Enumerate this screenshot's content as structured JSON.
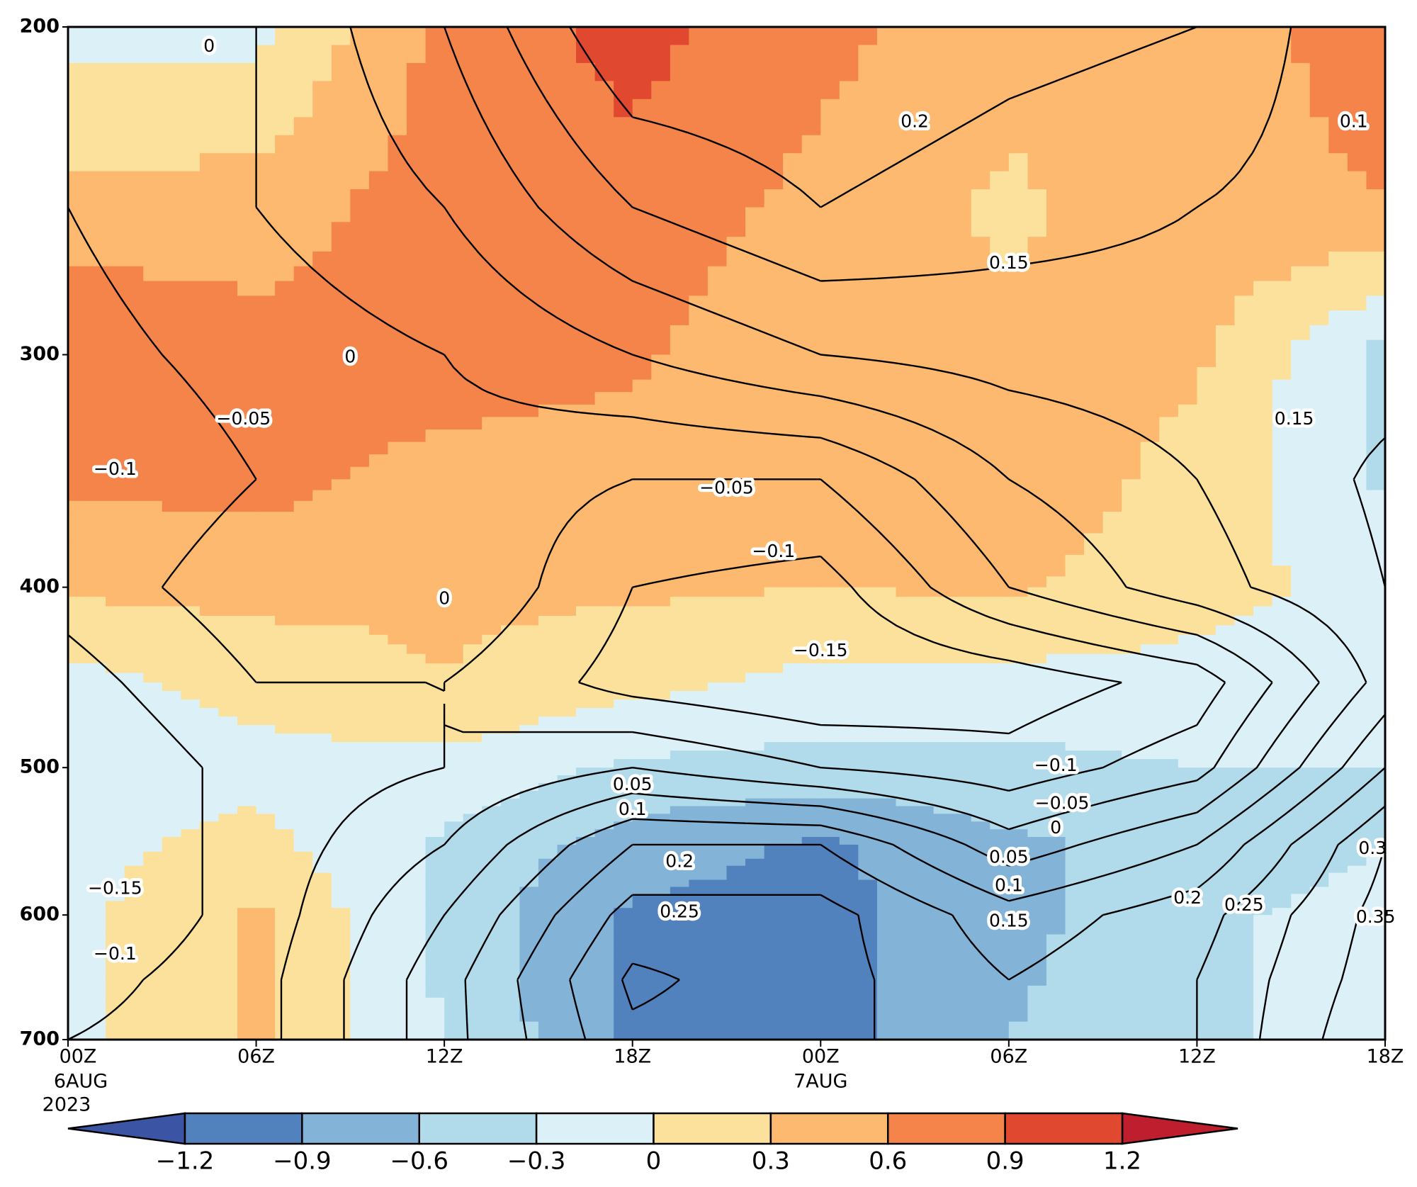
{
  "chart_data": {
    "type": "contour",
    "x": [
      0,
      6,
      12,
      18,
      24,
      30,
      36,
      42
    ],
    "y": [
      200,
      250,
      300,
      350,
      400,
      450,
      500,
      550,
      600,
      650,
      700
    ],
    "xlim": [
      0,
      42
    ],
    "ylim": [
      200,
      700
    ],
    "y_inverted": true,
    "log_scale": true,
    "xticks": [
      {
        "value": 0,
        "label": "00Z"
      },
      {
        "value": 6,
        "label": "06Z"
      },
      {
        "value": 12,
        "label": "12Z"
      },
      {
        "value": 18,
        "label": "18Z"
      },
      {
        "value": 24,
        "label": "00Z"
      },
      {
        "value": 30,
        "label": "06Z"
      },
      {
        "value": 36,
        "label": "12Z"
      },
      {
        "value": 42,
        "label": "18Z"
      }
    ],
    "x_date_labels": [
      {
        "value": 0,
        "label": "6AUG"
      },
      {
        "value": 24,
        "label": "7AUG"
      }
    ],
    "x_year_label": {
      "value": 0,
      "label": "2023"
    },
    "yticks": [
      200,
      300,
      400,
      500,
      600,
      700
    ],
    "shading": {
      "levels": [
        -1.2,
        -0.9,
        -0.6,
        -0.3,
        0,
        0.3,
        0.6,
        0.9,
        1.2
      ],
      "colors": [
        "#3b54a4",
        "#5282be",
        "#83b4d8",
        "#b1dbea",
        "#dcf1f7",
        "#fce19d",
        "#fdb96f",
        "#f5844b",
        "#e0482f",
        "#be1e2d"
      ],
      "extend": "both",
      "values": [
        [
          -0.1,
          -0.1,
          0.7,
          1.0,
          0.7,
          0.4,
          0.5,
          0.7
        ],
        [
          0.4,
          0.45,
          0.75,
          0.8,
          0.5,
          0.25,
          0.5,
          0.6
        ],
        [
          0.9,
          0.7,
          0.75,
          0.65,
          0.35,
          0.35,
          0.35,
          -0.4
        ],
        [
          0.65,
          0.7,
          0.5,
          0.45,
          0.45,
          0.5,
          0.2,
          -0.35
        ],
        [
          0.35,
          0.4,
          0.35,
          0.35,
          0.3,
          0.35,
          0.1,
          -0.1
        ],
        [
          -0.1,
          0.1,
          0.3,
          0.1,
          -0.1,
          -0.1,
          -0.1,
          -0.2
        ],
        [
          -0.1,
          -0.1,
          -0.1,
          -0.35,
          -0.4,
          -0.4,
          -0.3,
          -0.3
        ],
        [
          -0.1,
          0.1,
          -0.35,
          -0.75,
          -0.95,
          -0.65,
          -0.5,
          -0.3
        ],
        [
          -0.1,
          0.35,
          -0.4,
          -0.95,
          -1.0,
          -0.7,
          -0.35,
          -0.2
        ],
        [
          -0.1,
          0.35,
          -0.35,
          -0.95,
          -1.0,
          -0.65,
          -0.35,
          -0.2
        ],
        [
          -0.1,
          0.35,
          -0.3,
          -0.95,
          -1.0,
          -0.6,
          -0.35,
          -0.2
        ]
      ]
    },
    "contours": {
      "levels": [
        -0.15,
        -0.1,
        -0.05,
        0,
        0.05,
        0.1,
        0.15,
        0.2,
        0.25,
        0.3,
        0.35
      ],
      "color": "#000000",
      "values": [
        [
          -0.05,
          0.0,
          0.1,
          0.25,
          0.25,
          0.22,
          0.2,
          0.1
        ],
        [
          -0.05,
          0.0,
          0.05,
          0.15,
          0.2,
          0.17,
          0.15,
          0.12
        ],
        [
          -0.07,
          -0.03,
          0.0,
          0.05,
          0.1,
          0.12,
          0.13,
          0.13
        ],
        [
          -0.1,
          -0.05,
          -0.02,
          -0.05,
          -0.05,
          0.05,
          0.1,
          0.16
        ],
        [
          -0.08,
          -0.02,
          0.0,
          -0.1,
          -0.12,
          0.0,
          0.08,
          0.15
        ],
        [
          -0.12,
          -0.05,
          -0.05,
          -0.12,
          -0.15,
          -0.13,
          -0.08,
          0.12
        ],
        [
          -0.15,
          -0.08,
          -0.05,
          0.0,
          -0.05,
          -0.08,
          -0.02,
          0.2
        ],
        [
          -0.15,
          -0.08,
          0.0,
          0.15,
          0.15,
          0.02,
          0.1,
          0.3
        ],
        [
          -0.15,
          -0.08,
          0.05,
          0.22,
          0.22,
          0.12,
          0.18,
          0.32
        ],
        [
          -0.12,
          -0.07,
          0.08,
          0.26,
          0.22,
          0.15,
          0.2,
          0.33
        ],
        [
          -0.1,
          -0.07,
          0.08,
          0.24,
          0.22,
          0.15,
          0.2,
          0.35
        ]
      ]
    },
    "contour_labels": [
      {
        "label": "0",
        "x": 4.5,
        "y": 205
      },
      {
        "label": "0.2",
        "x": 27.0,
        "y": 225
      },
      {
        "label": "0.1",
        "x": 41.0,
        "y": 225
      },
      {
        "label": "0.15",
        "x": 30.0,
        "y": 268
      },
      {
        "label": "0",
        "x": 9.0,
        "y": 301
      },
      {
        "label": "−0.05",
        "x": 5.6,
        "y": 325
      },
      {
        "label": "−0.1",
        "x": 1.5,
        "y": 346
      },
      {
        "label": "0.15",
        "x": 39.1,
        "y": 325
      },
      {
        "label": "−0.05",
        "x": 21.0,
        "y": 354
      },
      {
        "label": "−0.1",
        "x": 22.5,
        "y": 383
      },
      {
        "label": "0",
        "x": 12.0,
        "y": 406
      },
      {
        "label": "−0.15",
        "x": 24.0,
        "y": 433
      },
      {
        "label": "−0.1",
        "x": 31.5,
        "y": 499
      },
      {
        "label": "−0.05",
        "x": 31.7,
        "y": 523
      },
      {
        "label": "0",
        "x": 31.5,
        "y": 539
      },
      {
        "label": "0.05",
        "x": 30.0,
        "y": 559
      },
      {
        "label": "0.1",
        "x": 30.0,
        "y": 579
      },
      {
        "label": "0.15",
        "x": 30.0,
        "y": 605
      },
      {
        "label": "0.05",
        "x": 18.0,
        "y": 511
      },
      {
        "label": "0.1",
        "x": 18.0,
        "y": 527
      },
      {
        "label": "0.2",
        "x": 19.5,
        "y": 562
      },
      {
        "label": "0.25",
        "x": 19.5,
        "y": 598
      },
      {
        "label": "−0.15",
        "x": 1.5,
        "y": 581
      },
      {
        "label": "−0.1",
        "x": 1.5,
        "y": 630
      },
      {
        "label": "0.2",
        "x": 35.7,
        "y": 588
      },
      {
        "label": "0.25",
        "x": 37.5,
        "y": 593
      },
      {
        "label": "0.3",
        "x": 41.6,
        "y": 553
      },
      {
        "label": "0.35",
        "x": 41.7,
        "y": 602
      }
    ],
    "colorbar_ticks": [
      {
        "value": -1.2,
        "label": "−1.2"
      },
      {
        "value": -0.9,
        "label": "−0.9"
      },
      {
        "value": -0.6,
        "label": "−0.6"
      },
      {
        "value": -0.3,
        "label": "−0.3"
      },
      0,
      0.3,
      0.6,
      0.9,
      1.2
    ]
  }
}
